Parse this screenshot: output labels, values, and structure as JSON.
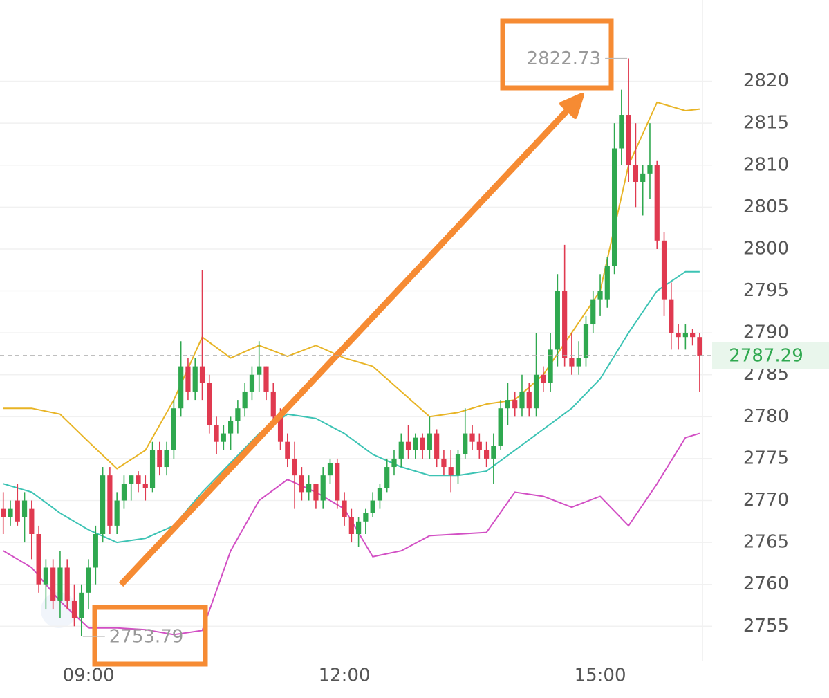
{
  "chart_data": {
    "type": "candlestick",
    "x": [
      480,
      485,
      490,
      495,
      500,
      505,
      510,
      515,
      520,
      525,
      530,
      535,
      540,
      545,
      550,
      555,
      560,
      565,
      570,
      575,
      580,
      585,
      590,
      595,
      600,
      605,
      610,
      615,
      620,
      625,
      630,
      635,
      640,
      645,
      650,
      655,
      660,
      665,
      670,
      675,
      680,
      685,
      690,
      695,
      700,
      705,
      710,
      715,
      720,
      725,
      730,
      735,
      740,
      745,
      750,
      755,
      760,
      765,
      770,
      775,
      780,
      785,
      790,
      795,
      800,
      805,
      810,
      815,
      820,
      825,
      830,
      835,
      840,
      845,
      850,
      855,
      860,
      865,
      870,
      875,
      880,
      885,
      890,
      895,
      900,
      905,
      910,
      915,
      920,
      925,
      930,
      935,
      940,
      945,
      950,
      955,
      960,
      965,
      970
    ],
    "ohlc": [
      [
        2769,
        2771,
        2766,
        2768
      ],
      [
        2768,
        2770,
        2767,
        2769
      ],
      [
        2770,
        2772,
        2767,
        2767.5
      ],
      [
        2768,
        2771,
        2765,
        2770
      ],
      [
        2769,
        2770,
        2763,
        2766
      ],
      [
        2766,
        2767,
        2759,
        2760
      ],
      [
        2760,
        2763,
        2757,
        2762
      ],
      [
        2762,
        2763,
        2757,
        2758
      ],
      [
        2758,
        2764,
        2756,
        2762
      ],
      [
        2762,
        2763,
        2757,
        2758
      ],
      [
        2758,
        2760,
        2755,
        2756
      ],
      [
        2756,
        2760,
        2753.79,
        2759
      ],
      [
        2759,
        2763,
        2757,
        2762
      ],
      [
        2762,
        2767,
        2760,
        2766
      ],
      [
        2766,
        2774,
        2765,
        2773
      ],
      [
        2773,
        2774,
        2766,
        2767
      ],
      [
        2767,
        2771,
        2766,
        2770
      ],
      [
        2770,
        2773,
        2769,
        2772
      ],
      [
        2772,
        2773,
        2770,
        2773
      ],
      [
        2773,
        2773.5,
        2771,
        2772
      ],
      [
        2772,
        2773,
        2770,
        2771.5
      ],
      [
        2771.5,
        2777,
        2771,
        2776
      ],
      [
        2776,
        2777,
        2773,
        2774
      ],
      [
        2774,
        2777,
        2773,
        2776
      ],
      [
        2776,
        2782,
        2775,
        2781
      ],
      [
        2781,
        2789,
        2780,
        2786
      ],
      [
        2786,
        2787,
        2782,
        2783
      ],
      [
        2783,
        2787,
        2782,
        2786
      ],
      [
        2786,
        2797.5,
        2782,
        2784
      ],
      [
        2784,
        2785,
        2778,
        2779
      ],
      [
        2779,
        2780,
        2775.5,
        2777
      ],
      [
        2777,
        2779,
        2776,
        2778
      ],
      [
        2778,
        2780,
        2776,
        2779.5
      ],
      [
        2779.5,
        2782,
        2778,
        2781
      ],
      [
        2781,
        2784,
        2780,
        2783
      ],
      [
        2783,
        2786,
        2782,
        2785
      ],
      [
        2785,
        2789,
        2783,
        2786
      ],
      [
        2786,
        2786,
        2782,
        2783
      ],
      [
        2783,
        2784,
        2779,
        2780
      ],
      [
        2780,
        2781,
        2776,
        2777
      ],
      [
        2777,
        2778,
        2774,
        2775
      ],
      [
        2775,
        2777,
        2769,
        2773
      ],
      [
        2773,
        2774,
        2770,
        2771
      ],
      [
        2771,
        2773,
        2770,
        2772
      ],
      [
        2772,
        2772,
        2769,
        2770
      ],
      [
        2770,
        2774,
        2769,
        2773
      ],
      [
        2773,
        2775,
        2772,
        2774.5
      ],
      [
        2774.5,
        2775,
        2769,
        2770
      ],
      [
        2770,
        2771,
        2767,
        2768
      ],
      [
        2768,
        2769,
        2765,
        2766
      ],
      [
        2766,
        2768,
        2764.5,
        2767.5
      ],
      [
        2767.5,
        2769,
        2766,
        2768.5
      ],
      [
        2768.5,
        2771,
        2768,
        2770
      ],
      [
        2770,
        2772,
        2769,
        2771.5
      ],
      [
        2771.5,
        2775,
        2771,
        2774
      ],
      [
        2774,
        2776,
        2773,
        2775
      ],
      [
        2775,
        2778,
        2774,
        2777
      ],
      [
        2777,
        2779,
        2775,
        2776
      ],
      [
        2776,
        2778,
        2775,
        2777.5
      ],
      [
        2777.5,
        2778,
        2775,
        2776
      ],
      [
        2776,
        2780,
        2775,
        2778
      ],
      [
        2778,
        2778.5,
        2774,
        2775
      ],
      [
        2775,
        2776,
        2773,
        2774
      ],
      [
        2774,
        2776,
        2771,
        2773
      ],
      [
        2773,
        2776,
        2772,
        2775.5
      ],
      [
        2775.5,
        2781,
        2775,
        2778
      ],
      [
        2778,
        2779,
        2776,
        2777
      ],
      [
        2777,
        2778,
        2775,
        2776
      ],
      [
        2776,
        2777,
        2774,
        2775
      ],
      [
        2775,
        2778,
        2772,
        2776.5
      ],
      [
        2776.5,
        2782,
        2776,
        2781
      ],
      [
        2781,
        2784,
        2779,
        2782
      ],
      [
        2782,
        2783,
        2780,
        2781
      ],
      [
        2781,
        2785,
        2780,
        2783
      ],
      [
        2783,
        2784,
        2780,
        2781
      ],
      [
        2781,
        2790,
        2780,
        2785
      ],
      [
        2785,
        2786,
        2783,
        2784
      ],
      [
        2784,
        2790,
        2783,
        2788
      ],
      [
        2788,
        2797,
        2786,
        2795
      ],
      [
        2795,
        2800.5,
        2786,
        2787
      ],
      [
        2787,
        2790,
        2785,
        2786
      ],
      [
        2786,
        2789,
        2785,
        2787
      ],
      [
        2787,
        2792,
        2786,
        2791
      ],
      [
        2791,
        2795,
        2790,
        2794
      ],
      [
        2794,
        2797,
        2792,
        2795
      ],
      [
        2794,
        2799,
        2793,
        2798
      ],
      [
        2798,
        2815,
        2797,
        2812
      ],
      [
        2812,
        2819,
        2810,
        2816
      ],
      [
        2816,
        2822.73,
        2808,
        2810
      ],
      [
        2810,
        2815,
        2805,
        2808
      ],
      [
        2808,
        2810,
        2804,
        2809
      ],
      [
        2809,
        2815,
        2806,
        2810
      ],
      [
        2810,
        2810.5,
        2800,
        2801
      ],
      [
        2801,
        2802,
        2792,
        2794
      ],
      [
        2794,
        2796,
        2788,
        2790
      ],
      [
        2790,
        2791,
        2788,
        2789.5
      ],
      [
        2789.5,
        2791,
        2788,
        2790
      ],
      [
        2790,
        2790.5,
        2788.5,
        2789.5
      ],
      [
        2789.5,
        2790,
        2783,
        2787.29
      ]
    ],
    "up_color": "#2fa84f",
    "down_color": "#e03a50",
    "lines_x": [
      480,
      500,
      520,
      540,
      560,
      580,
      600,
      620,
      640,
      660,
      680,
      700,
      720,
      740,
      760,
      780,
      800,
      820,
      840,
      860,
      880,
      900,
      920,
      940,
      960,
      970
    ],
    "lines": [
      {
        "color": "#e8b425",
        "values": [
          2781,
          2781,
          2780.3,
          2777,
          2773.8,
          2776,
          2782,
          2789.5,
          2787,
          2788.5,
          2787.2,
          2788.5,
          2787,
          2786,
          2783,
          2780,
          2780.5,
          2781.5,
          2782,
          2785,
          2790,
          2795,
          2810,
          2817.5,
          2816.5,
          2816.7
        ]
      },
      {
        "color": "#3cc3b4",
        "values": [
          2772,
          2771,
          2768.5,
          2766.5,
          2765,
          2765.5,
          2767,
          2771,
          2774.5,
          2778,
          2780.3,
          2779.8,
          2778,
          2775.5,
          2774,
          2773,
          2773,
          2773.5,
          2776,
          2778.5,
          2781,
          2784.5,
          2790,
          2795,
          2797.3,
          2797.3
        ]
      },
      {
        "color": "#d24fc4",
        "values": [
          2764,
          2762,
          2758,
          2754.8,
          2754.8,
          2754.6,
          2754,
          2754.5,
          2764,
          2770,
          2772.5,
          2771,
          2769,
          2763.3,
          2764,
          2765.8,
          2766,
          2766.2,
          2771,
          2770.5,
          2769.2,
          2770.5,
          2767,
          2772,
          2777.5,
          2778
        ]
      }
    ],
    "xlim": [
      477.7,
      971.5
    ],
    "ylim": [
      2750.9,
      2829.7
    ],
    "xticks": [
      {
        "value": 540,
        "label": "09:00"
      },
      {
        "value": 720,
        "label": "12:00"
      },
      {
        "value": 900,
        "label": "15:00"
      }
    ],
    "yticks": [
      2755,
      2760,
      2765,
      2770,
      2775,
      2780,
      2785,
      2790,
      2795,
      2800,
      2805,
      2810,
      2815,
      2820
    ],
    "grid": true,
    "annotations": {
      "high": 2822.73,
      "low": 2753.79,
      "last": 2787.29
    }
  }
}
